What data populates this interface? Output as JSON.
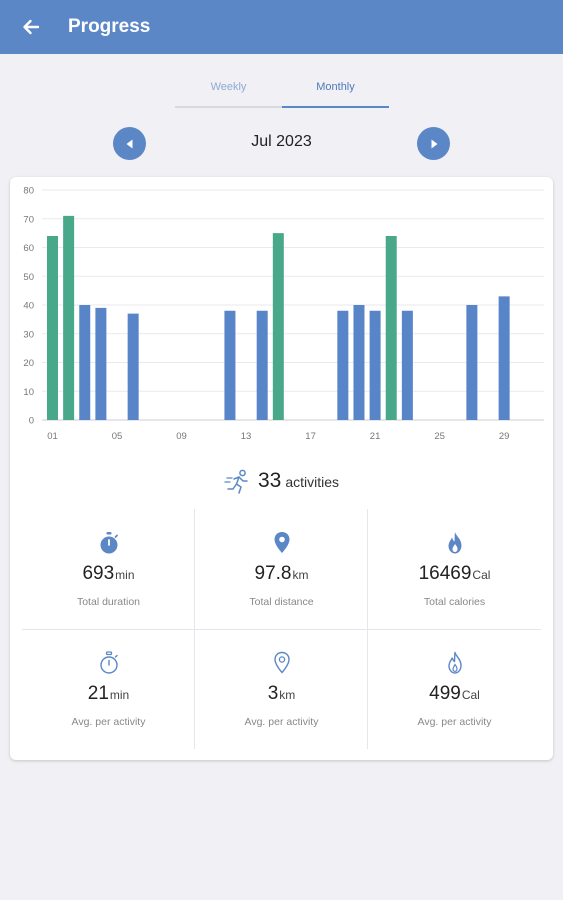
{
  "appbar": {
    "title": "Progress"
  },
  "tabs": [
    {
      "label": "Weekly",
      "active": false
    },
    {
      "label": "Monthly",
      "active": true
    }
  ],
  "period": {
    "label": "Jul 2023"
  },
  "colors": {
    "primary": "#5b87c7",
    "green": "#49a88a",
    "blue": "#5884c8"
  },
  "chart_data": {
    "type": "bar",
    "ylim": [
      0,
      80
    ],
    "y_ticks": [
      "0",
      "10",
      "20",
      "30",
      "40",
      "50",
      "60",
      "70",
      "80"
    ],
    "x_ticks": [
      {
        "day": 1,
        "label": "01"
      },
      {
        "day": 5,
        "label": "05"
      },
      {
        "day": 9,
        "label": "09"
      },
      {
        "day": 13,
        "label": "13"
      },
      {
        "day": 17,
        "label": "17"
      },
      {
        "day": 21,
        "label": "21"
      },
      {
        "day": 25,
        "label": "25"
      },
      {
        "day": 29,
        "label": "29"
      }
    ],
    "days": [
      1,
      2,
      3,
      4,
      6,
      12,
      14,
      15,
      19,
      20,
      21,
      22,
      23,
      27,
      29
    ],
    "values": [
      64,
      71,
      40,
      39,
      37,
      38,
      38,
      65,
      38,
      40,
      38,
      64,
      38,
      40,
      43
    ],
    "highlight": [
      true,
      true,
      false,
      false,
      false,
      false,
      false,
      true,
      false,
      false,
      false,
      true,
      false,
      false,
      false
    ]
  },
  "activities": {
    "count": "33",
    "unit": "activities"
  },
  "stats": {
    "duration": {
      "value": "693",
      "unit": "min",
      "label": "Total duration"
    },
    "distance": {
      "value": "97.8",
      "unit": "km",
      "label": "Total distance"
    },
    "calories": {
      "value": "16469",
      "unit": "Cal",
      "label": "Total calories"
    },
    "avg_duration": {
      "value": "21",
      "unit": "min",
      "label": "Avg. per activity"
    },
    "avg_distance": {
      "value": "3",
      "unit": "km",
      "label": "Avg. per activity"
    },
    "avg_calories": {
      "value": "499",
      "unit": "Cal",
      "label": "Avg. per activity"
    }
  }
}
